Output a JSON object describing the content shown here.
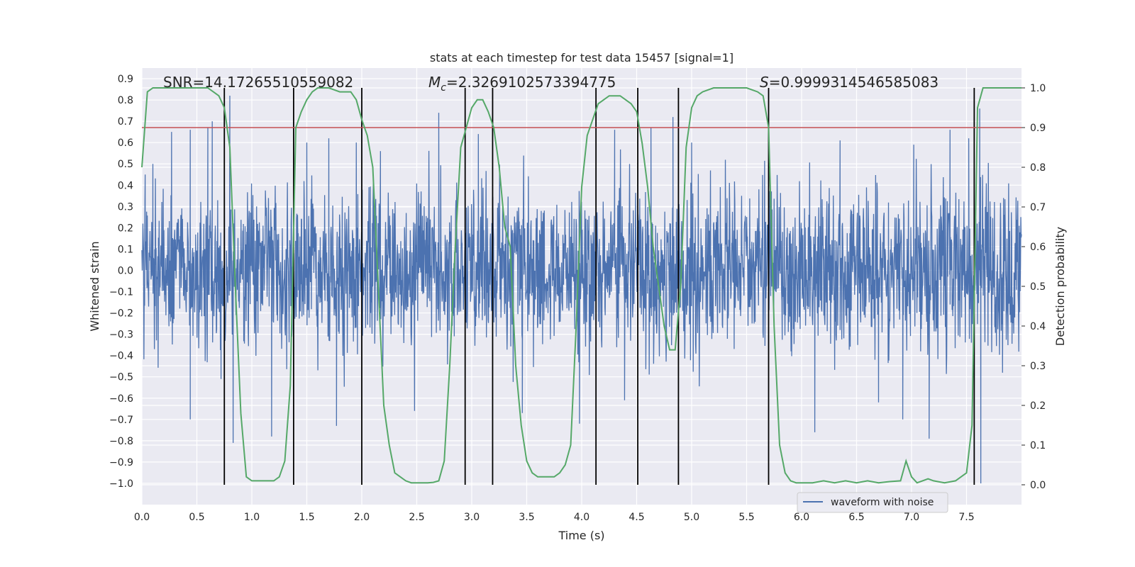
{
  "chart_data": {
    "type": "line",
    "title": "stats at each timestep for test data 15457 [signal=1]",
    "xlabel": "Time (s)",
    "ylabel_left": "Whitened strain",
    "ylabel_right": "Detection probability",
    "xlim": [
      0,
      8
    ],
    "ylim_left": [
      -1.1,
      0.95
    ],
    "ylim_right": [
      -0.05,
      1.05
    ],
    "x_ticks": [
      "0.0",
      "0.5",
      "1.0",
      "1.5",
      "2.0",
      "2.5",
      "3.0",
      "3.5",
      "4.0",
      "4.5",
      "5.0",
      "5.5",
      "6.0",
      "6.5",
      "7.0",
      "7.5"
    ],
    "y_ticks_left": [
      "−1.0",
      "−0.9",
      "−0.8",
      "−0.7",
      "−0.6",
      "−0.5",
      "−0.4",
      "−0.3",
      "−0.2",
      "−0.1",
      "0.0",
      "0.1",
      "0.2",
      "0.3",
      "0.4",
      "0.5",
      "0.6",
      "0.7",
      "0.8",
      "0.9"
    ],
    "y_ticks_right": [
      "0.0",
      "0.1",
      "0.2",
      "0.3",
      "0.4",
      "0.5",
      "0.6",
      "0.7",
      "0.8",
      "0.9",
      "1.0"
    ],
    "grid": true,
    "background_color": "#eaeaf2",
    "annotations": {
      "snr_text": "SNR=14.17265510559082",
      "mc_symbol": "M",
      "mc_subscript": "c",
      "mc_value": "=2.3269102573394775",
      "s_symbol": "S",
      "s_value": "=0.9999314546585083"
    },
    "threshold": {
      "axis": "right",
      "y": 0.9,
      "color": "#c44e52"
    },
    "vertical_lines": {
      "color": "#000000",
      "x": [
        0.75,
        1.38,
        2.0,
        2.94,
        3.19,
        4.13,
        4.51,
        4.88,
        5.7,
        7.57
      ]
    },
    "series": [
      {
        "name": "waveform with noise",
        "axis": "left",
        "color": "#4c72b0",
        "kind": "noise",
        "typical_amplitude": 0.35,
        "peak_values": [
          [
            0.03,
            0.45
          ],
          [
            0.1,
            0.5
          ],
          [
            0.27,
            0.65
          ],
          [
            0.44,
            0.66
          ],
          [
            0.6,
            0.67
          ],
          [
            0.64,
            0.7
          ],
          [
            0.8,
            0.82
          ],
          [
            0.72,
            -0.51
          ],
          [
            0.83,
            -0.81
          ],
          [
            0.44,
            -0.7
          ],
          [
            1.18,
            -0.78
          ],
          [
            1.5,
            0.6
          ],
          [
            1.7,
            0.62
          ],
          [
            1.77,
            -0.73
          ],
          [
            1.95,
            0.6
          ],
          [
            2.17,
            0.56
          ],
          [
            2.48,
            -0.66
          ],
          [
            2.7,
            0.74
          ],
          [
            3.06,
            0.64
          ],
          [
            3.46,
            -0.67
          ],
          [
            3.98,
            -0.72
          ],
          [
            4.3,
            0.66
          ],
          [
            4.39,
            -0.61
          ],
          [
            4.63,
            0.67
          ],
          [
            4.83,
            0.72
          ],
          [
            5.0,
            0.6
          ],
          [
            6.12,
            -0.76
          ],
          [
            6.35,
            0.61
          ],
          [
            6.7,
            -0.62
          ],
          [
            6.92,
            -0.7
          ],
          [
            7.02,
            0.59
          ],
          [
            7.16,
            -0.79
          ],
          [
            7.35,
            0.66
          ],
          [
            7.52,
            0.62
          ],
          [
            7.62,
            0.76
          ],
          [
            7.63,
            -1.0
          ]
        ]
      },
      {
        "name": "",
        "axis": "right",
        "color": "#55a868",
        "x": [
          0.0,
          0.05,
          0.1,
          0.2,
          0.3,
          0.4,
          0.5,
          0.6,
          0.65,
          0.7,
          0.75,
          0.8,
          0.85,
          0.9,
          0.95,
          1.0,
          1.05,
          1.1,
          1.15,
          1.2,
          1.25,
          1.3,
          1.35,
          1.4,
          1.45,
          1.5,
          1.55,
          1.6,
          1.7,
          1.8,
          1.9,
          1.95,
          2.0,
          2.05,
          2.1,
          2.15,
          2.2,
          2.25,
          2.3,
          2.35,
          2.4,
          2.45,
          2.5,
          2.55,
          2.6,
          2.65,
          2.7,
          2.75,
          2.8,
          2.85,
          2.9,
          2.95,
          3.0,
          3.05,
          3.1,
          3.15,
          3.2,
          3.25,
          3.3,
          3.35,
          3.4,
          3.45,
          3.5,
          3.55,
          3.6,
          3.65,
          3.7,
          3.75,
          3.8,
          3.85,
          3.9,
          3.95,
          4.0,
          4.05,
          4.1,
          4.15,
          4.2,
          4.25,
          4.3,
          4.35,
          4.4,
          4.45,
          4.5,
          4.55,
          4.6,
          4.65,
          4.7,
          4.75,
          4.8,
          4.85,
          4.9,
          4.95,
          5.0,
          5.05,
          5.1,
          5.2,
          5.3,
          5.4,
          5.5,
          5.6,
          5.65,
          5.7,
          5.75,
          5.8,
          5.85,
          5.9,
          5.95,
          6.0,
          6.1,
          6.2,
          6.3,
          6.4,
          6.5,
          6.6,
          6.7,
          6.8,
          6.9,
          6.95,
          7.0,
          7.05,
          7.1,
          7.15,
          7.2,
          7.3,
          7.4,
          7.45,
          7.5,
          7.55,
          7.6,
          7.65,
          7.7,
          7.8,
          7.9,
          8.0
        ],
        "values": [
          0.8,
          0.99,
          1.0,
          1.0,
          1.0,
          1.0,
          1.0,
          1.0,
          0.99,
          0.98,
          0.95,
          0.85,
          0.5,
          0.18,
          0.02,
          0.01,
          0.01,
          0.01,
          0.01,
          0.01,
          0.02,
          0.06,
          0.25,
          0.9,
          0.94,
          0.97,
          0.99,
          1.0,
          1.0,
          0.99,
          0.99,
          0.97,
          0.92,
          0.88,
          0.8,
          0.5,
          0.2,
          0.1,
          0.03,
          0.02,
          0.01,
          0.005,
          0.005,
          0.005,
          0.005,
          0.006,
          0.01,
          0.06,
          0.3,
          0.6,
          0.85,
          0.9,
          0.95,
          0.97,
          0.97,
          0.94,
          0.9,
          0.8,
          0.65,
          0.6,
          0.3,
          0.15,
          0.06,
          0.03,
          0.02,
          0.02,
          0.02,
          0.02,
          0.03,
          0.05,
          0.1,
          0.4,
          0.75,
          0.88,
          0.92,
          0.96,
          0.97,
          0.98,
          0.98,
          0.98,
          0.97,
          0.96,
          0.94,
          0.86,
          0.75,
          0.6,
          0.5,
          0.4,
          0.34,
          0.34,
          0.5,
          0.85,
          0.95,
          0.98,
          0.99,
          1.0,
          1.0,
          1.0,
          1.0,
          0.99,
          0.98,
          0.9,
          0.4,
          0.1,
          0.03,
          0.01,
          0.005,
          0.005,
          0.005,
          0.01,
          0.005,
          0.01,
          0.005,
          0.01,
          0.005,
          0.008,
          0.01,
          0.06,
          0.02,
          0.005,
          0.01,
          0.015,
          0.01,
          0.005,
          0.01,
          0.02,
          0.03,
          0.15,
          0.95,
          1.0,
          1.0,
          1.0,
          1.0,
          1.0
        ]
      }
    ],
    "legend": {
      "position": "bottom-right",
      "entries": [
        "waveform with noise"
      ]
    }
  }
}
